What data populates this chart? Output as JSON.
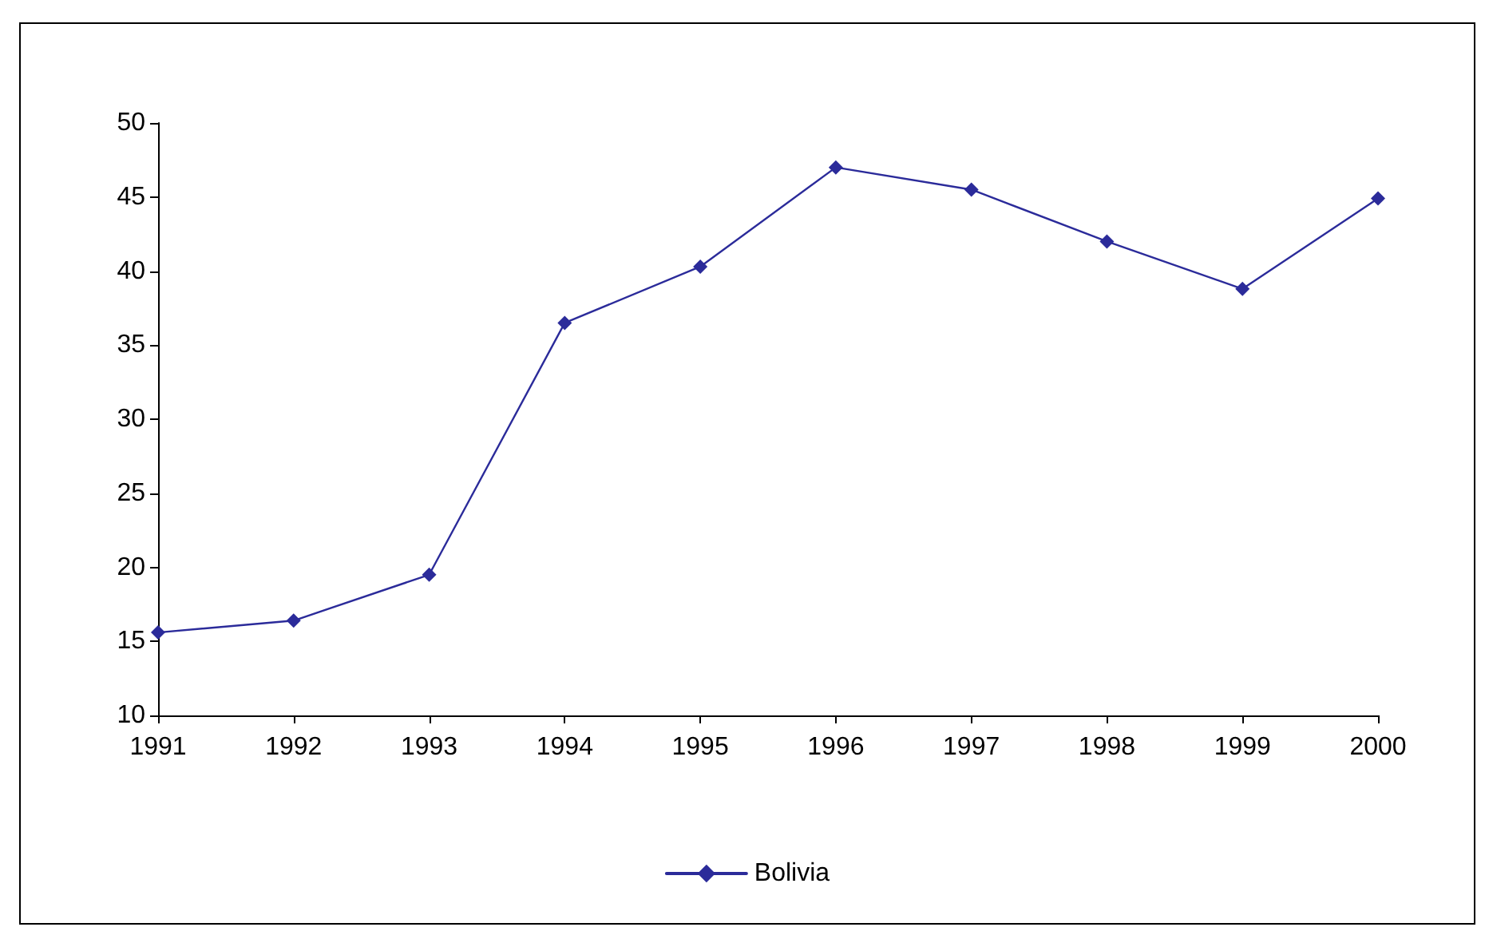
{
  "chart_data": {
    "type": "line",
    "categories": [
      "1991",
      "1992",
      "1993",
      "1994",
      "1995",
      "1996",
      "1997",
      "1998",
      "1999",
      "2000"
    ],
    "series": [
      {
        "name": "Bolivia",
        "color": "#2b2b9a",
        "values": [
          15.6,
          16.4,
          19.5,
          36.5,
          40.3,
          47.0,
          45.5,
          42.0,
          38.8,
          44.9
        ]
      }
    ],
    "ylim": [
      10,
      50
    ],
    "yticks": [
      10,
      15,
      20,
      25,
      30,
      35,
      40,
      45,
      50
    ],
    "grid": false,
    "legend": "bottom",
    "marker": "diamond",
    "line_style": "solid"
  }
}
